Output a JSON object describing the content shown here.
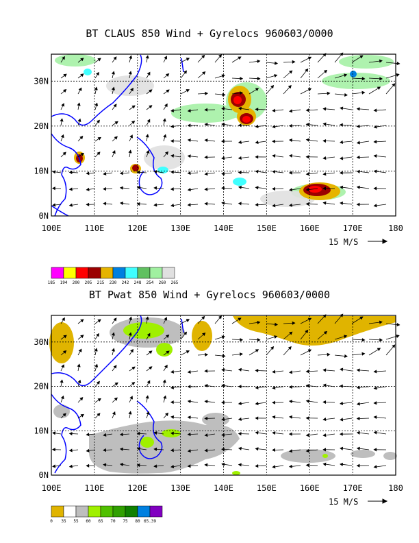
{
  "maps": [
    {
      "title": "BT CLAUS 850 Wind + Gyrelocs 960603/0000",
      "lon_labels": [
        "100E",
        "110E",
        "120E",
        "130E",
        "140E",
        "150E",
        "160E",
        "170E",
        "180"
      ],
      "lat_labels": [
        "0N",
        "10N",
        "20N",
        "30N"
      ],
      "scale_label": "15 M/S",
      "legend_colors": [
        "#ff00ff",
        "#ffff00",
        "#ff0000",
        "#9b0000",
        "#e6b400",
        "#0080e0",
        "#40ffff",
        "#60c060",
        "#a0f0a0",
        "#e0e0e0"
      ],
      "legend_labels": [
        "185",
        "194",
        "200",
        "205",
        "215",
        "230",
        "242",
        "248",
        "254",
        "260",
        "265"
      ]
    },
    {
      "title": "BT Pwat 850 Wind + Gyrelocs 960603/0000",
      "lon_labels": [
        "100E",
        "110E",
        "120E",
        "130E",
        "140E",
        "150E",
        "160E",
        "170E",
        "180"
      ],
      "lat_labels": [
        "0N",
        "10N",
        "20N",
        "30N"
      ],
      "scale_label": "15 M/S",
      "legend_colors": [
        "#e0b400",
        "#ffffff",
        "#bebebe",
        "#a0f000",
        "#50c000",
        "#30a000",
        "#108000",
        "#0080e0",
        "#8000c0"
      ],
      "legend_labels": [
        "0",
        "35",
        "55",
        "60",
        "65",
        "70",
        "75",
        "80",
        "65.39"
      ]
    }
  ]
}
